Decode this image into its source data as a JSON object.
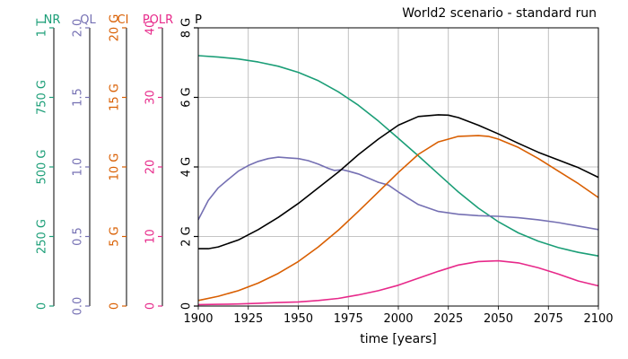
{
  "chart_data": {
    "type": "line",
    "title": "World2 scenario - standard run",
    "xlabel": "time [years]",
    "xlim": [
      1900,
      2100
    ],
    "x_ticks": [
      1900,
      1925,
      1950,
      1975,
      2000,
      2025,
      2050,
      2075,
      2100
    ],
    "x_tick_labels": [
      "1900",
      "1925",
      "1950",
      "1975",
      "2000",
      "2025",
      "2050",
      "2075",
      "2100"
    ],
    "grid": true,
    "axes": [
      {
        "key": "NR",
        "label": "NR",
        "color": "#1b9e77",
        "min": 0,
        "max": 1000000000000,
        "ticks": [
          0,
          250000000000,
          500000000000,
          750000000000,
          1000000000000
        ],
        "tick_labels": [
          "0",
          "250 G",
          "500 G",
          "750 G",
          "1 T"
        ]
      },
      {
        "key": "QL",
        "label": "QL",
        "color": "#7570b3",
        "min": 0,
        "max": 2,
        "ticks": [
          0,
          0.5,
          1,
          1.5,
          2
        ],
        "tick_labels": [
          "0.0",
          "0.5",
          "1.0",
          "1.5",
          "2.0"
        ]
      },
      {
        "key": "CI",
        "label": "CI",
        "color": "#d95f02",
        "min": 0,
        "max": 20000000000,
        "ticks": [
          0,
          5000000000,
          10000000000,
          15000000000,
          20000000000
        ],
        "tick_labels": [
          "0",
          "5 G",
          "10 G",
          "15 G",
          "20 G"
        ]
      },
      {
        "key": "POLR",
        "label": "POLR",
        "color": "#e7298a",
        "min": 0,
        "max": 40,
        "ticks": [
          0,
          10,
          20,
          30,
          40
        ],
        "tick_labels": [
          "0",
          "10",
          "20",
          "30",
          "40"
        ]
      },
      {
        "key": "P",
        "label": "P",
        "color": "#000000",
        "min": 0,
        "max": 8000000000,
        "ticks": [
          0,
          2000000000,
          4000000000,
          6000000000,
          8000000000
        ],
        "tick_labels": [
          "0",
          "2 G",
          "4 G",
          "6 G",
          "8 G"
        ]
      }
    ],
    "series": [
      {
        "name": "NR",
        "axis": "NR",
        "color": "#1b9e77",
        "x": [
          1900,
          1910,
          1920,
          1930,
          1940,
          1950,
          1960,
          1970,
          1980,
          1990,
          2000,
          2010,
          2020,
          2030,
          2040,
          2050,
          2060,
          2070,
          2080,
          2090,
          2100
        ],
        "values": [
          900000000000,
          895000000000,
          888000000000,
          877000000000,
          862000000000,
          840000000000,
          810000000000,
          770000000000,
          722000000000,
          665000000000,
          603000000000,
          540000000000,
          475000000000,
          410000000000,
          352000000000,
          303000000000,
          263000000000,
          233000000000,
          210000000000,
          193000000000,
          180000000000
        ]
      },
      {
        "name": "QL",
        "axis": "QL",
        "color": "#7570b3",
        "x": [
          1900,
          1905,
          1910,
          1915,
          1920,
          1925,
          1930,
          1935,
          1940,
          1945,
          1950,
          1955,
          1960,
          1965,
          1968,
          1972,
          1975,
          1980,
          1985,
          1990,
          1995,
          2000,
          2010,
          2020,
          2030,
          2040,
          2050,
          2060,
          2070,
          2080,
          2090,
          2100
        ],
        "values": [
          0.62,
          0.76,
          0.85,
          0.91,
          0.97,
          1.01,
          1.04,
          1.06,
          1.07,
          1.065,
          1.06,
          1.045,
          1.02,
          0.99,
          0.975,
          0.98,
          0.97,
          0.95,
          0.92,
          0.89,
          0.87,
          0.82,
          0.73,
          0.68,
          0.66,
          0.65,
          0.645,
          0.635,
          0.62,
          0.6,
          0.575,
          0.55
        ]
      },
      {
        "name": "CI",
        "axis": "CI",
        "color": "#d95f02",
        "x": [
          1900,
          1910,
          1920,
          1930,
          1940,
          1950,
          1960,
          1970,
          1980,
          1990,
          2000,
          2010,
          2020,
          2030,
          2040,
          2045,
          2050,
          2060,
          2070,
          2080,
          2090,
          2100
        ],
        "values": [
          400000000,
          700000000,
          1100000000,
          1650000000,
          2350000000,
          3200000000,
          4250000000,
          5450000000,
          6800000000,
          8200000000,
          9600000000,
          10900000000,
          11800000000,
          12200000000,
          12250000000,
          12200000000,
          12000000000,
          11400000000,
          10600000000,
          9700000000,
          8800000000,
          7800000000
        ]
      },
      {
        "name": "POLR",
        "axis": "POLR",
        "color": "#e7298a",
        "x": [
          1900,
          1910,
          1920,
          1930,
          1940,
          1950,
          1960,
          1970,
          1980,
          1990,
          2000,
          2010,
          2020,
          2030,
          2040,
          2050,
          2060,
          2070,
          2080,
          2090,
          2100
        ],
        "values": [
          0.2,
          0.25,
          0.3,
          0.4,
          0.5,
          0.6,
          0.8,
          1.1,
          1.6,
          2.2,
          3.0,
          4.0,
          5.0,
          5.9,
          6.4,
          6.5,
          6.2,
          5.5,
          4.6,
          3.6,
          2.9
        ]
      },
      {
        "name": "P",
        "axis": "P",
        "color": "#000000",
        "x": [
          1900,
          1905,
          1910,
          1920,
          1930,
          1940,
          1950,
          1960,
          1970,
          1980,
          1990,
          2000,
          2010,
          2020,
          2025,
          2030,
          2040,
          2050,
          2060,
          2070,
          2080,
          2090,
          2100
        ],
        "values": [
          1650000000,
          1650000000,
          1700000000,
          1900000000,
          2200000000,
          2550000000,
          2950000000,
          3400000000,
          3850000000,
          4350000000,
          4800000000,
          5200000000,
          5450000000,
          5500000000,
          5490000000,
          5420000000,
          5200000000,
          4950000000,
          4680000000,
          4420000000,
          4200000000,
          3980000000,
          3700000000
        ]
      }
    ]
  }
}
